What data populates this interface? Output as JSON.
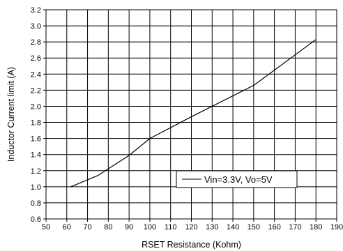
{
  "chart_data": {
    "type": "line",
    "xlabel": "RSET Resistance (Kohm)",
    "ylabel": "Inductor Current limit (A)",
    "xlim": [
      50,
      190
    ],
    "ylim": [
      0.6,
      3.2
    ],
    "xticks": [
      50,
      60,
      70,
      80,
      90,
      100,
      110,
      120,
      130,
      140,
      150,
      160,
      170,
      180,
      190
    ],
    "yticks": [
      "0.6",
      "0.8",
      "1.0",
      "1.2",
      "1.4",
      "1.6",
      "1.8",
      "2.0",
      "2.2",
      "2.4",
      "2.6",
      "2.8",
      "3.0",
      "3.2"
    ],
    "grid": true,
    "legend_position": "lower-right",
    "series": [
      {
        "name": "Vin=3.3V, Vo=5V",
        "color": "#000000",
        "x": [
          62,
          75,
          90,
          100,
          120,
          150,
          180
        ],
        "y": [
          1.0,
          1.14,
          1.39,
          1.6,
          1.87,
          2.26,
          2.83
        ]
      }
    ]
  }
}
